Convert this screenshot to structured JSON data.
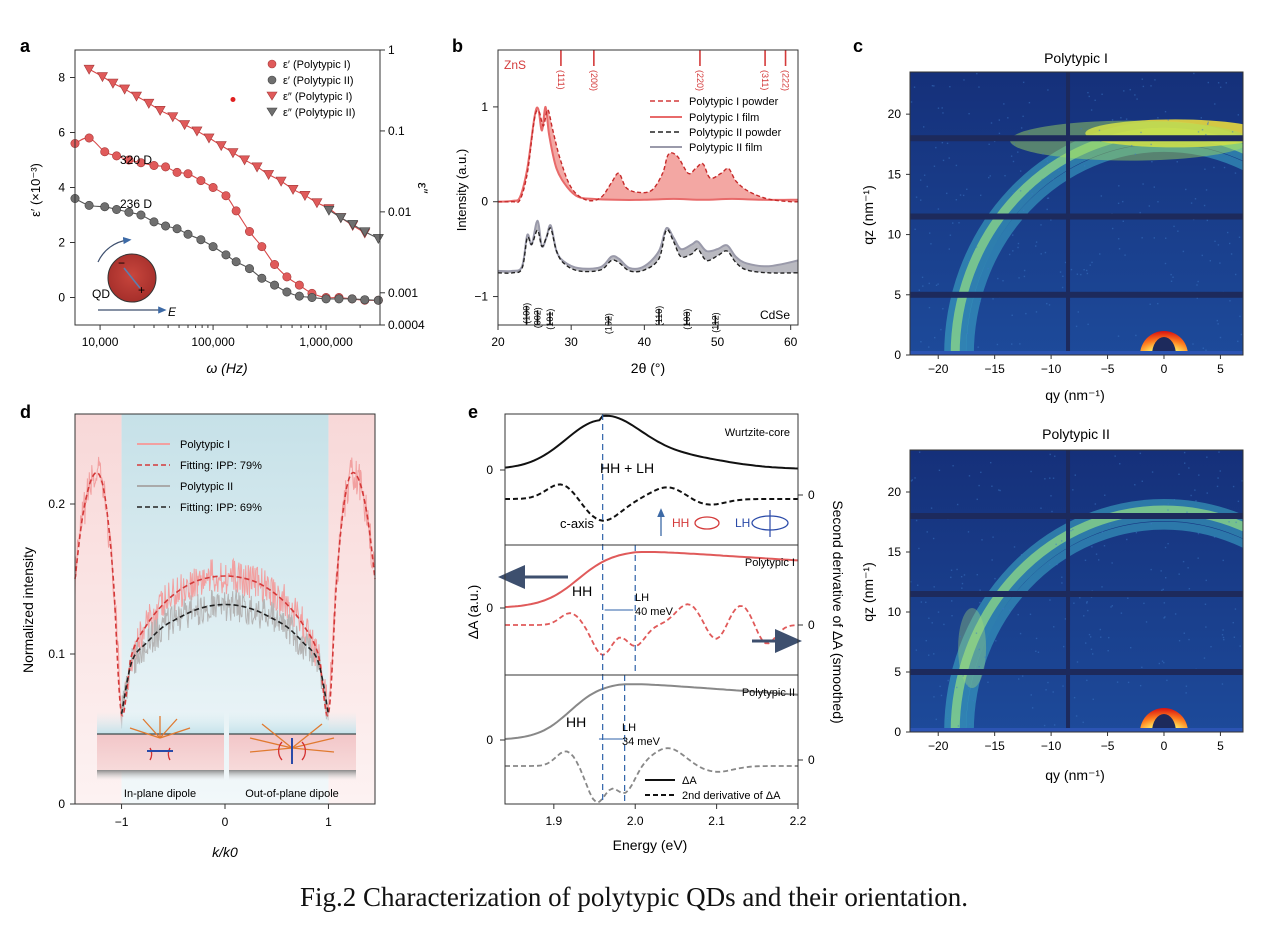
{
  "caption": "Fig.2 Characterization of polytypic QDs and their orientation.",
  "colors": {
    "red": "#e05a5a",
    "red_line": "#e0493f",
    "grey": "#6f6f6f",
    "dark": "#222222",
    "blue_dash": "#2e62a8",
    "navy_arrow": "#3d4f6e"
  },
  "chart_data": [
    {
      "panel": "a",
      "type": "scatter",
      "xlabel": "ω (Hz)",
      "ylabel": "ε′ (×10⁻³)",
      "y2label": "ε″",
      "x_scale": "log",
      "xlim": [
        6000,
        3000000
      ],
      "ylim": [
        -1,
        9
      ],
      "y2lim": [
        0.0004,
        1
      ],
      "y2_scale": "log",
      "x_ticks": [
        {
          "v": 10000,
          "label": "10,000"
        },
        {
          "v": 100000,
          "label": "100,000"
        },
        {
          "v": 1000000,
          "label": "1,000,000"
        }
      ],
      "y_ticks": [
        {
          "v": 0,
          "label": "0"
        },
        {
          "v": 2,
          "label": "2"
        },
        {
          "v": 4,
          "label": "4"
        },
        {
          "v": 6,
          "label": "6"
        },
        {
          "v": 8,
          "label": "8"
        }
      ],
      "y2_ticks": [
        {
          "v": 0.0004,
          "label": "0.0004"
        },
        {
          "v": 0.001,
          "label": "0.001"
        },
        {
          "v": 0.01,
          "label": "0.01"
        },
        {
          "v": 0.1,
          "label": "0.1"
        },
        {
          "v": 1,
          "label": "1"
        }
      ],
      "legend": [
        "ε′ (Polytypic I)",
        "ε′ (Polytypic II)",
        "ε″ (Polytypic I)",
        "ε″ (Polytypic II)"
      ],
      "annotations": {
        "d1": "320 D",
        "d2": "236 D",
        "qd": "QD",
        "e": "E",
        "minus": "−",
        "plus": "+"
      },
      "series": [
        {
          "name": "ε′ (Polytypic I)",
          "axis": "left",
          "marker": "circle",
          "color": "#e05a5a",
          "x": [
            6000,
            8000,
            11000,
            14000,
            18000,
            23000,
            30000,
            38000,
            48000,
            60000,
            78000,
            100000,
            130000,
            160000,
            210000,
            270000,
            350000,
            450000,
            580000,
            750000,
            1000000,
            1300000,
            1700000,
            2200000,
            2900000
          ],
          "y": [
            5.6,
            5.8,
            5.3,
            5.15,
            5.0,
            4.9,
            4.8,
            4.75,
            4.55,
            4.5,
            4.25,
            4.0,
            3.7,
            3.15,
            2.4,
            1.85,
            1.2,
            0.75,
            0.45,
            0.15,
            0.0,
            0.0,
            -0.05,
            -0.1,
            -0.1
          ]
        },
        {
          "name": "ε′ (Polytypic II)",
          "axis": "left",
          "marker": "circle",
          "color": "#6f6f6f",
          "x": [
            6000,
            8000,
            11000,
            14000,
            18000,
            23000,
            30000,
            38000,
            48000,
            60000,
            78000,
            100000,
            130000,
            160000,
            210000,
            270000,
            350000,
            450000,
            580000,
            750000,
            1000000,
            1300000,
            1700000,
            2200000,
            2900000
          ],
          "y": [
            3.6,
            3.35,
            3.3,
            3.2,
            3.1,
            3.0,
            2.75,
            2.6,
            2.5,
            2.3,
            2.1,
            1.85,
            1.55,
            1.3,
            1.05,
            0.7,
            0.45,
            0.2,
            0.05,
            0.0,
            -0.05,
            -0.05,
            -0.05,
            -0.08,
            -0.1
          ]
        },
        {
          "name": "ε″ (Polytypic I)",
          "axis": "right",
          "marker": "triangle-down",
          "color": "#e05a5a",
          "x": [
            8000,
            10500,
            13000,
            16500,
            21000,
            27000,
            34000,
            44000,
            56000,
            72000,
            92000,
            118000,
            150000,
            190000,
            245000,
            310000,
            400000,
            510000,
            650000,
            830000,
            1060000,
            1350000,
            1720000,
            2200000
          ],
          "y": [
            0.58,
            0.47,
            0.39,
            0.33,
            0.27,
            0.22,
            0.18,
            0.15,
            0.12,
            0.1,
            0.082,
            0.066,
            0.054,
            0.044,
            0.036,
            0.029,
            0.024,
            0.019,
            0.016,
            0.013,
            0.011,
            0.0085,
            0.0068,
            0.0055
          ]
        },
        {
          "name": "ε″ (Polytypic II)",
          "axis": "right",
          "marker": "triangle-down",
          "color": "#6f6f6f",
          "x": [
            1060000,
            1350000,
            1720000,
            2200000,
            2900000
          ],
          "y": [
            0.0105,
            0.0085,
            0.007,
            0.0057,
            0.0047
          ]
        },
        {
          "name": "",
          "axis": "left",
          "marker": "dot",
          "color": "#e02020",
          "x": [
            150000
          ],
          "y": [
            7.2
          ]
        }
      ]
    },
    {
      "panel": "b",
      "type": "line",
      "xlabel": "2θ (°)",
      "ylabel": "Intensity (a.u.)",
      "xlim": [
        20,
        61
      ],
      "ylim": [
        -1.3,
        1.6
      ],
      "x_ticks": [
        20,
        30,
        40,
        50,
        60
      ],
      "y_ticks": [
        {
          "v": -1,
          "label": "−1"
        },
        {
          "v": 0,
          "label": "0"
        },
        {
          "v": 1,
          "label": "1"
        }
      ],
      "legend": [
        "Polytypic I powder",
        "Polytypic I film",
        "Polytypic II powder",
        "Polytypic II film"
      ],
      "zns_label": "ZnS",
      "cdse_label": "CdSe",
      "zns_refs": [
        {
          "x": 28.6,
          "label": "(111)"
        },
        {
          "x": 33.1,
          "label": "(200)"
        },
        {
          "x": 47.6,
          "label": "(220)"
        },
        {
          "x": 56.5,
          "label": "(311)"
        },
        {
          "x": 59.3,
          "label": "(222)"
        }
      ],
      "cdse_refs": [
        {
          "x": 23.9,
          "label": "(100)",
          "h": 0.26
        },
        {
          "x": 25.4,
          "label": "(002)",
          "h": 0.2
        },
        {
          "x": 27.1,
          "label": "(101)",
          "h": 0.18
        },
        {
          "x": 35.1,
          "label": "(102)",
          "h": 0.12
        },
        {
          "x": 42.0,
          "label": "(110)",
          "h": 0.22
        },
        {
          "x": 45.8,
          "label": "(103)",
          "h": 0.18
        },
        {
          "x": 49.7,
          "label": "(112)",
          "h": 0.13
        }
      ],
      "series": [
        {
          "name": "Polytypic I powder",
          "x": [
            20,
            22,
            23,
            24,
            25,
            25.6,
            26.2,
            26.8,
            27.5,
            28.5,
            30,
            32,
            34,
            35.5,
            36.5,
            37.5,
            39,
            41,
            42.5,
            43.3,
            44.5,
            46,
            47,
            48,
            49,
            50.5,
            51.5,
            52.5,
            54,
            56,
            57.5,
            60,
            61
          ],
          "y": [
            0,
            0.0,
            0.02,
            0.3,
            0.88,
            0.95,
            0.8,
            0.97,
            0.75,
            0.45,
            0.15,
            0.02,
            0.04,
            0.2,
            0.3,
            0.15,
            0.1,
            0.12,
            0.3,
            0.5,
            0.48,
            0.3,
            0.35,
            0.4,
            0.25,
            0.3,
            0.35,
            0.22,
            0.12,
            0.05,
            0.02,
            0.0,
            0.0
          ]
        },
        {
          "name": "Polytypic I film",
          "x": [
            20,
            22,
            23,
            24,
            25,
            25.5,
            26,
            26.5,
            27,
            28,
            29.5,
            31,
            33,
            36,
            40,
            44,
            48,
            52,
            56,
            60,
            61
          ],
          "y": [
            0,
            0.01,
            0.05,
            0.35,
            0.9,
            0.98,
            0.75,
            1.0,
            0.7,
            0.35,
            0.15,
            0.05,
            0.03,
            0.02,
            0.02,
            0.03,
            0.02,
            0.03,
            0.02,
            0.02,
            0.02
          ]
        },
        {
          "name": "Polytypic II powder",
          "x": [
            20,
            22,
            23.3,
            24,
            24.6,
            25.4,
            26,
            26.6,
            27.2,
            28,
            29,
            31,
            34,
            35.5,
            36.5,
            38,
            40,
            42,
            43,
            44,
            45,
            46.5,
            47.3,
            48.5,
            50,
            51.3,
            52.5,
            54,
            57,
            61
          ],
          "y": [
            -0.75,
            -0.75,
            -0.7,
            -0.38,
            -0.45,
            -0.3,
            -0.47,
            -0.38,
            -0.28,
            -0.52,
            -0.65,
            -0.73,
            -0.72,
            -0.62,
            -0.64,
            -0.73,
            -0.72,
            -0.6,
            -0.3,
            -0.42,
            -0.58,
            -0.55,
            -0.5,
            -0.62,
            -0.57,
            -0.52,
            -0.64,
            -0.72,
            -0.75,
            -0.75
          ]
        },
        {
          "name": "Polytypic II film",
          "x": [
            20,
            22,
            23.3,
            24,
            24.6,
            25.4,
            26,
            26.6,
            27.2,
            28,
            29,
            31,
            34,
            35.5,
            36.5,
            38,
            40,
            42,
            43,
            44,
            45,
            46.5,
            47.3,
            48.5,
            50,
            51.3,
            52.5,
            54,
            57,
            61
          ],
          "y": [
            -0.73,
            -0.73,
            -0.68,
            -0.35,
            -0.45,
            -0.2,
            -0.47,
            -0.38,
            -0.25,
            -0.52,
            -0.63,
            -0.7,
            -0.69,
            -0.58,
            -0.6,
            -0.7,
            -0.68,
            -0.52,
            -0.28,
            -0.38,
            -0.5,
            -0.45,
            -0.42,
            -0.52,
            -0.5,
            -0.46,
            -0.58,
            -0.65,
            -0.68,
            -0.62
          ]
        }
      ]
    },
    {
      "panel": "c",
      "type": "heatmap",
      "title_top": "Polytypic I",
      "title_bottom": "Polytypic II",
      "xlabel": "qy (nm⁻¹)",
      "ylabel": "qz (nm⁻¹)",
      "xlim": [
        -22.5,
        7
      ],
      "ylim": [
        0,
        23.5
      ],
      "x_ticks": [
        {
          "v": -20,
          "label": "−20"
        },
        {
          "v": -15,
          "label": "−15"
        },
        {
          "v": -10,
          "label": "−10"
        },
        {
          "v": -5,
          "label": "−5"
        },
        {
          "v": 0,
          "label": "0"
        },
        {
          "v": 5,
          "label": "5"
        }
      ],
      "y_ticks": [
        0,
        5,
        10,
        15,
        20
      ],
      "rings_q": [
        18.5,
        17.2
      ],
      "detector_gaps_qz": [
        5,
        11.5,
        18
      ],
      "detector_gap_qy": -8.5
    },
    {
      "panel": "d",
      "type": "line",
      "xlabel": "k/k0",
      "ylabel": "Normalized intensity",
      "xlim": [
        -1.45,
        1.45
      ],
      "ylim": [
        0,
        0.26
      ],
      "x_ticks": [
        {
          "v": -1,
          "label": "−1"
        },
        {
          "v": 0,
          "label": "0"
        },
        {
          "v": 1,
          "label": "1"
        }
      ],
      "y_ticks": [
        {
          "v": 0,
          "label": "0"
        },
        {
          "v": 0.1,
          "label": "0.1"
        },
        {
          "v": 0.2,
          "label": "0.2"
        }
      ],
      "legend": [
        "Polytypic I",
        "Fitting: IPP: 79%",
        "Polytypic II",
        "Fitting: IPP: 69%"
      ],
      "inset_labels": [
        "In-plane dipole",
        "Out-of-plane dipole"
      ],
      "series": [
        {
          "name": "Fitting: IPP: 79%",
          "x": [
            -1.45,
            -1.38,
            -1.3,
            -1.22,
            -1.15,
            -1.08,
            -1.0,
            -0.9,
            -0.75,
            -0.6,
            -0.45,
            -0.3,
            -0.15,
            0,
            0.15,
            0.3,
            0.45,
            0.6,
            0.75,
            0.9,
            1.0,
            1.08,
            1.15,
            1.22,
            1.3,
            1.38,
            1.45
          ],
          "y": [
            0.15,
            0.19,
            0.215,
            0.22,
            0.2,
            0.15,
            0.06,
            0.1,
            0.12,
            0.133,
            0.142,
            0.148,
            0.151,
            0.152,
            0.151,
            0.148,
            0.142,
            0.133,
            0.12,
            0.1,
            0.06,
            0.15,
            0.2,
            0.22,
            0.215,
            0.19,
            0.15
          ]
        },
        {
          "name": "Fitting: IPP: 69%",
          "x": [
            -1.0,
            -0.9,
            -0.75,
            -0.6,
            -0.45,
            -0.3,
            -0.15,
            0,
            0.15,
            0.3,
            0.45,
            0.6,
            0.75,
            0.9,
            1.0
          ],
          "y": [
            0.06,
            0.095,
            0.108,
            0.118,
            0.124,
            0.129,
            0.132,
            0.133,
            0.132,
            0.129,
            0.124,
            0.118,
            0.108,
            0.095,
            0.06
          ]
        },
        {
          "name": "Polytypic I",
          "noise": true,
          "base": "Fitting: IPP: 79%",
          "amp": 0.012
        },
        {
          "name": "Polytypic II",
          "noise": true,
          "base": "Fitting: IPP: 69%",
          "amp": 0.011
        }
      ]
    },
    {
      "panel": "e",
      "type": "line",
      "xlabel": "Energy (eV)",
      "ylabel": "ΔA (a.u.)",
      "y2label": "Second derivative of ΔA (smoothed)",
      "xlim": [
        1.84,
        2.2
      ],
      "x_ticks": [
        1.9,
        2.0,
        2.1,
        2.2
      ],
      "x_tick_labels": [
        "1.9",
        "2.0",
        "2.1",
        "2.2"
      ],
      "y_zero_label": "0",
      "subpanel_titles": [
        "Wurtzite-core",
        "Polytypic I",
        "Polytypic II"
      ],
      "annotations": {
        "hhlh": "HH + LH",
        "caxis": "c-axis",
        "hh": "HH",
        "lh": "LH",
        "hh1": "HH",
        "lh1": "LH",
        "lh1_meV": "40 meV",
        "hh2": "HH",
        "lh2": "LH",
        "lh2_meV": "34 meV"
      },
      "legend": [
        "ΔA",
        "2nd derivative of ΔA"
      ],
      "dash_lines_eV": [
        1.96,
        2.0,
        1.953,
        1.987
      ]
    }
  ]
}
